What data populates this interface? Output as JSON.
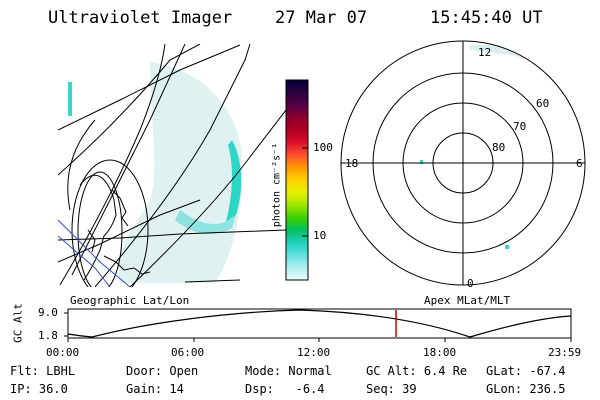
{
  "header": {
    "instrument": "Ultraviolet Imager",
    "date": "27 Mar 07",
    "time": "15:45:40 UT"
  },
  "geo_panel": {
    "caption": "Geographic Lat/Lon"
  },
  "colorbar": {
    "unit_label": "photon cm⁻²s⁻¹",
    "ticks": [
      "100",
      "10"
    ],
    "colors": [
      "#000033",
      "#2a0040",
      "#550045",
      "#8a0030",
      "#b00020",
      "#d8102a",
      "#ff5030",
      "#ff9a00",
      "#ffd000",
      "#e8f000",
      "#a0e800",
      "#40d000",
      "#00c060",
      "#20d0c0",
      "#60e0e0",
      "#b0eeee",
      "#e8fafa"
    ]
  },
  "polar_panel": {
    "caption": "Apex MLat/MLT",
    "mlt_labels": {
      "top": "12",
      "right": "6",
      "bottom": "0",
      "left": "18"
    },
    "lat_labels": [
      "60",
      "70",
      "80"
    ]
  },
  "timeline": {
    "axis_label": "GC Alt",
    "y_ticks": [
      "9.0",
      "1.8"
    ],
    "x_ticks": [
      "00:00",
      "06:00",
      "12:00",
      "18:00",
      "23:59"
    ],
    "marker_color": "#cc0000"
  },
  "info": {
    "row1": [
      {
        "label": "Flt:",
        "value": "LBHL"
      },
      {
        "label": "Door:",
        "value": "Open"
      },
      {
        "label": "Mode:",
        "value": "Normal"
      },
      {
        "label": "GC Alt:",
        "value": "6.4 Re"
      },
      {
        "label": "GLat:",
        "value": "-67.4"
      }
    ],
    "row2": [
      {
        "label": "IP:",
        "value": "36.0"
      },
      {
        "label": "Gain:",
        "value": "14"
      },
      {
        "label": "Dsp:",
        "value": "-6.4"
      },
      {
        "label": "Seq:",
        "value": "39"
      },
      {
        "label": "GLon:",
        "value": "236.5"
      }
    ]
  }
}
